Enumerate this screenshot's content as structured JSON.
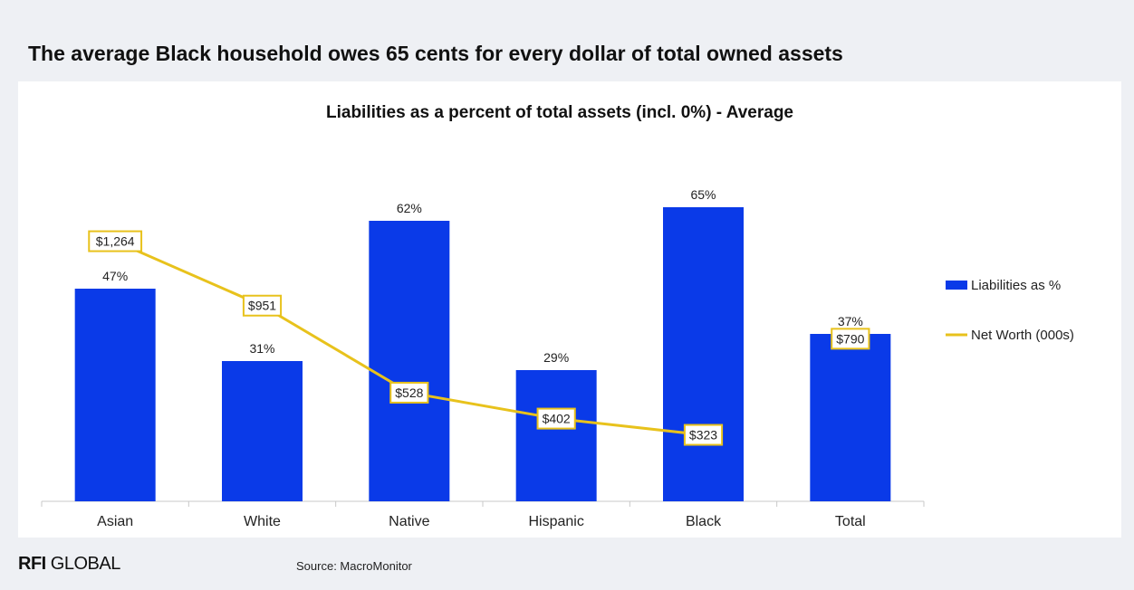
{
  "page": {
    "title": "The average Black household owes 65 cents for every dollar of total owned assets",
    "source": "Source: MacroMonitor",
    "logo": {
      "strong": "RFI",
      "rest": " GLOBAL"
    }
  },
  "colors": {
    "bar": "#0a3ae8",
    "line": "#e8c21c",
    "axis": "#c8c8c8",
    "text": "#222222"
  },
  "chart_data": {
    "type": "bar",
    "title": "Liabilities as a percent of total assets (incl. 0%) - Average",
    "categories": [
      "Asian",
      "White",
      "Native",
      "Hispanic",
      "Black",
      "Total"
    ],
    "series": [
      {
        "name": "Liabilities as %",
        "type": "bar",
        "values": [
          47,
          31,
          62,
          29,
          65,
          37
        ],
        "labels": [
          "47%",
          "31%",
          "62%",
          "29%",
          "65%",
          "37%"
        ]
      },
      {
        "name": "Net Worth (000s)",
        "type": "line",
        "values": [
          1264,
          951,
          528,
          402,
          323,
          790
        ],
        "labels": [
          "$1,264",
          "$951",
          "$528",
          "$402",
          "$323",
          "$790"
        ],
        "connected": [
          true,
          true,
          true,
          true,
          true,
          false
        ]
      }
    ],
    "bar_ylim": [
      0,
      100
    ],
    "line_ylim": [
      0,
      2200
    ],
    "grid": false,
    "legend": "right"
  }
}
